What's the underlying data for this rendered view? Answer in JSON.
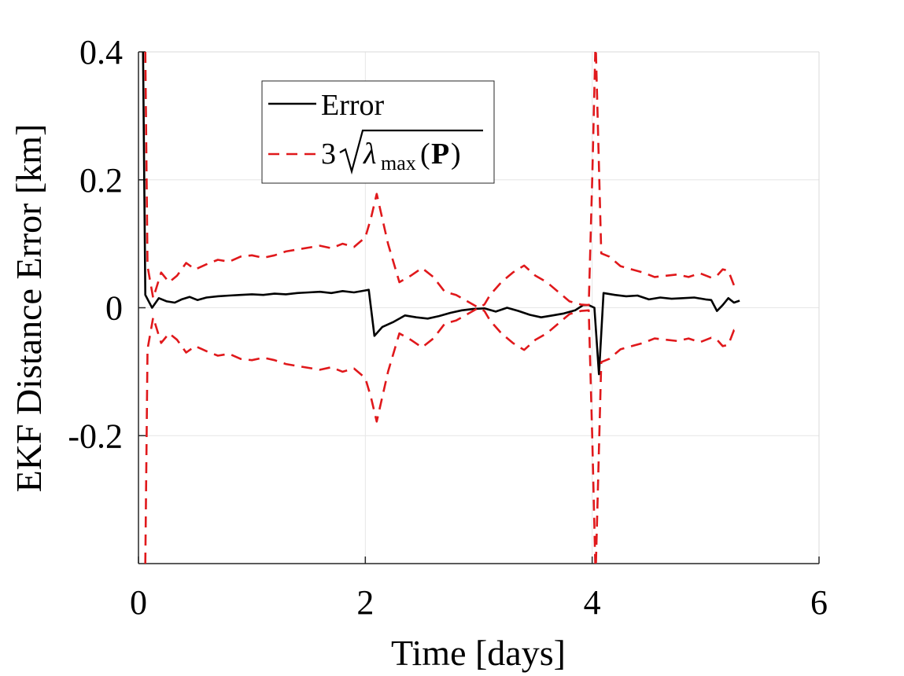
{
  "chart_data": {
    "type": "line",
    "title": "",
    "xlabel": "Time [days]",
    "ylabel": "EKF Distance Error [km]",
    "xlim": [
      0,
      6
    ],
    "ylim": [
      -0.4,
      0.4
    ],
    "grid": true,
    "legend_position": "top-center",
    "x_ticks": [
      0,
      2,
      4,
      6
    ],
    "x_tick_labels": [
      "0",
      "2",
      "4",
      "6"
    ],
    "y_ticks": [
      -0.2,
      0,
      0.2,
      0.4
    ],
    "y_tick_labels": [
      "-0.2",
      "0",
      "0.2",
      "0.4"
    ],
    "legend": {
      "error_label": "Error",
      "bound_prefix": "3",
      "bound_lambda": "λ",
      "bound_subscript": "max",
      "bound_open_paren": "(",
      "bound_matrix": "P",
      "bound_close_paren": ")"
    },
    "series": [
      {
        "name": "Error",
        "style": "solid",
        "color": "#000000",
        "x": [
          0.04,
          0.06,
          0.12,
          0.18,
          0.25,
          0.32,
          0.38,
          0.45,
          0.52,
          0.6,
          0.7,
          0.8,
          0.9,
          1.0,
          1.1,
          1.2,
          1.3,
          1.4,
          1.5,
          1.6,
          1.7,
          1.8,
          1.9,
          2.0,
          2.03,
          2.08,
          2.15,
          2.25,
          2.35,
          2.45,
          2.55,
          2.65,
          2.75,
          2.85,
          2.95,
          3.05,
          3.15,
          3.25,
          3.35,
          3.45,
          3.55,
          3.65,
          3.75,
          3.85,
          3.92,
          3.97,
          4.02,
          4.06,
          4.1,
          4.2,
          4.3,
          4.4,
          4.5,
          4.6,
          4.7,
          4.8,
          4.9,
          5.0,
          5.05,
          5.1,
          5.15,
          5.2,
          5.25,
          5.3
        ],
        "values": [
          0.4,
          0.02,
          0.0,
          0.015,
          0.01,
          0.008,
          0.013,
          0.017,
          0.012,
          0.016,
          0.018,
          0.019,
          0.02,
          0.021,
          0.02,
          0.022,
          0.021,
          0.023,
          0.024,
          0.025,
          0.023,
          0.026,
          0.024,
          0.027,
          0.028,
          -0.044,
          -0.03,
          -0.022,
          -0.012,
          -0.015,
          -0.017,
          -0.013,
          -0.008,
          -0.004,
          -0.002,
          -0.001,
          -0.006,
          0.0,
          -0.005,
          -0.011,
          -0.015,
          -0.012,
          -0.009,
          -0.004,
          0.004,
          0.004,
          0.0,
          -0.104,
          0.023,
          0.02,
          0.018,
          0.019,
          0.013,
          0.016,
          0.014,
          0.015,
          0.016,
          0.013,
          0.012,
          -0.005,
          0.004,
          0.015,
          0.008,
          0.011
        ]
      },
      {
        "name": "3 sqrt(lambda_max(P)) upper",
        "style": "dashed",
        "color": "#e0181b",
        "x": [
          0.06,
          0.08,
          0.13,
          0.2,
          0.27,
          0.34,
          0.42,
          0.5,
          0.6,
          0.7,
          0.8,
          0.9,
          1.0,
          1.1,
          1.2,
          1.3,
          1.4,
          1.5,
          1.6,
          1.7,
          1.8,
          1.9,
          2.0,
          2.05,
          2.1,
          2.2,
          2.3,
          2.4,
          2.5,
          2.6,
          2.7,
          2.8,
          2.9,
          3.0,
          3.05,
          3.1,
          3.2,
          3.3,
          3.4,
          3.5,
          3.6,
          3.7,
          3.8,
          3.9,
          3.97,
          4.0,
          4.03,
          4.08,
          4.15,
          4.25,
          4.35,
          4.45,
          4.55,
          4.65,
          4.75,
          4.85,
          4.95,
          5.05,
          5.1,
          5.15,
          5.2,
          5.25,
          5.3
        ],
        "values": [
          0.4,
          0.065,
          0.015,
          0.055,
          0.04,
          0.05,
          0.07,
          0.06,
          0.068,
          0.075,
          0.072,
          0.08,
          0.082,
          0.078,
          0.082,
          0.088,
          0.091,
          0.094,
          0.097,
          0.093,
          0.1,
          0.095,
          0.11,
          0.14,
          0.178,
          0.1,
          0.04,
          0.05,
          0.062,
          0.048,
          0.025,
          0.02,
          0.01,
          0.0,
          0.005,
          0.02,
          0.04,
          0.055,
          0.066,
          0.05,
          0.04,
          0.025,
          0.01,
          0.005,
          0.004,
          0.2,
          0.42,
          0.085,
          0.08,
          0.065,
          0.06,
          0.055,
          0.048,
          0.05,
          0.052,
          0.048,
          0.054,
          0.047,
          0.05,
          0.06,
          0.058,
          0.035,
          0.038
        ]
      },
      {
        "name": "3 sqrt(lambda_max(P)) lower",
        "style": "dashed",
        "color": "#e0181b",
        "x": [
          0.06,
          0.08,
          0.13,
          0.2,
          0.27,
          0.34,
          0.42,
          0.5,
          0.6,
          0.7,
          0.8,
          0.9,
          1.0,
          1.1,
          1.2,
          1.3,
          1.4,
          1.5,
          1.6,
          1.7,
          1.8,
          1.9,
          2.0,
          2.05,
          2.1,
          2.2,
          2.3,
          2.4,
          2.5,
          2.6,
          2.7,
          2.8,
          2.9,
          3.0,
          3.05,
          3.1,
          3.2,
          3.3,
          3.4,
          3.5,
          3.6,
          3.7,
          3.8,
          3.9,
          3.97,
          4.0,
          4.03,
          4.08,
          4.15,
          4.25,
          4.35,
          4.45,
          4.55,
          4.65,
          4.75,
          4.85,
          4.95,
          5.05,
          5.1,
          5.15,
          5.2,
          5.25,
          5.3
        ],
        "values": [
          -0.4,
          -0.065,
          -0.015,
          -0.055,
          -0.04,
          -0.05,
          -0.07,
          -0.06,
          -0.068,
          -0.075,
          -0.072,
          -0.08,
          -0.082,
          -0.078,
          -0.082,
          -0.088,
          -0.091,
          -0.094,
          -0.097,
          -0.093,
          -0.1,
          -0.095,
          -0.11,
          -0.14,
          -0.178,
          -0.1,
          -0.04,
          -0.05,
          -0.062,
          -0.048,
          -0.025,
          -0.02,
          -0.01,
          0.0,
          -0.005,
          -0.02,
          -0.04,
          -0.055,
          -0.066,
          -0.05,
          -0.04,
          -0.025,
          -0.01,
          -0.005,
          -0.004,
          -0.2,
          -0.42,
          -0.085,
          -0.08,
          -0.065,
          -0.06,
          -0.055,
          -0.048,
          -0.05,
          -0.052,
          -0.048,
          -0.054,
          -0.047,
          -0.05,
          -0.06,
          -0.058,
          -0.035,
          -0.038
        ]
      }
    ]
  }
}
